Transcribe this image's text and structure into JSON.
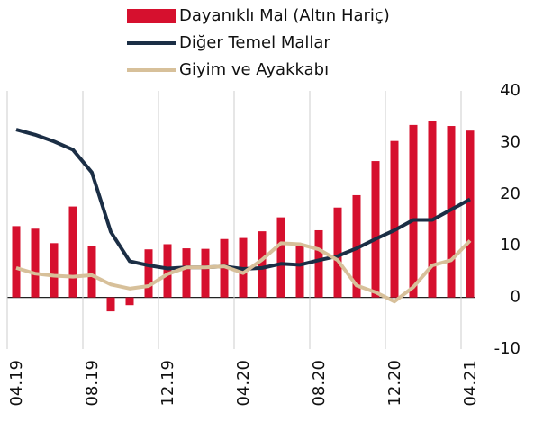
{
  "chart_data": {
    "type": "bar-line",
    "categories": [
      "04.19",
      null,
      null,
      null,
      "08.19",
      null,
      null,
      null,
      "12.19",
      null,
      null,
      null,
      "04.20",
      null,
      null,
      null,
      "08.20",
      null,
      null,
      null,
      "12.20",
      null,
      null,
      null,
      "04.21"
    ],
    "series": [
      {
        "name": "Dayanıklı Mal (Altın Hariç)",
        "kind": "bar",
        "color": "#d6102e",
        "values": [
          13.8,
          13.3,
          10.5,
          17.6,
          10,
          -2.7,
          -1.5,
          9.3,
          10.3,
          9.5,
          9.4,
          11.3,
          11.5,
          12.8,
          15.5,
          10.2,
          13,
          17.4,
          19.8,
          26.4,
          30.3,
          33.4,
          34.2,
          33.2,
          32.3
        ]
      },
      {
        "name": "Diğer Temel Mallar",
        "kind": "line",
        "color": "#1b2e45",
        "values": [
          32.5,
          31.5,
          30.2,
          28.6,
          24.2,
          12.7,
          7,
          6.2,
          5.6,
          5.8,
          5.8,
          6,
          5.5,
          5.7,
          6.5,
          6.3,
          7.2,
          8,
          9.5,
          11.3,
          13,
          15,
          15,
          17,
          19
        ]
      },
      {
        "name": "Giyim ve Ayakkabı",
        "kind": "line",
        "color": "#d7c09a",
        "values": [
          5.7,
          4.6,
          4.2,
          4,
          4.3,
          2.5,
          1.7,
          2.2,
          4.5,
          5.8,
          5.8,
          6,
          4.7,
          7.3,
          10.5,
          10.3,
          9.3,
          7.2,
          2.3,
          1,
          -0.8,
          2,
          6.2,
          7.2,
          11
        ]
      }
    ],
    "ylim": [
      -10,
      40
    ],
    "yticks": [
      -10,
      0,
      10,
      20,
      30,
      40
    ],
    "grid": true
  }
}
